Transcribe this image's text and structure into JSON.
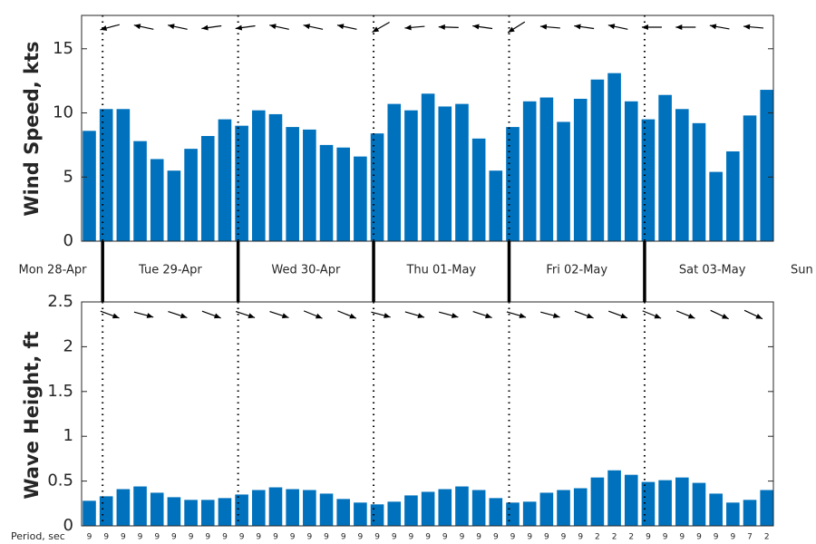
{
  "chart_data": [
    {
      "type": "bar",
      "ylabel": "Wind Speed, kts",
      "color": "#0072bd",
      "ylim": [
        0,
        17.6
      ],
      "yticks": [
        0,
        5,
        10,
        15
      ],
      "x_labels": [
        "Mon 28-Apr",
        "Tue 29-Apr",
        "Wed 30-Apr",
        "Thu 01-May",
        "Fri 02-May",
        "Sat 03-May",
        "Sun"
      ],
      "values": [
        8.6,
        10.3,
        10.3,
        7.8,
        6.4,
        5.5,
        7.2,
        8.2,
        9.5,
        9.0,
        10.2,
        9.9,
        8.9,
        8.7,
        7.5,
        7.3,
        6.6,
        8.4,
        10.7,
        10.2,
        11.5,
        10.5,
        10.7,
        8.0,
        5.5,
        8.9,
        10.9,
        11.2,
        9.3,
        11.1,
        12.6,
        13.1,
        10.9,
        9.5,
        11.4,
        10.3,
        9.2,
        5.4,
        7.0,
        9.8,
        11.8
      ],
      "directions": [
        255,
        282,
        282,
        262,
        262,
        282,
        282,
        282,
        240,
        265,
        272,
        278,
        238,
        275,
        278,
        282,
        270,
        270,
        280,
        275
      ]
    },
    {
      "type": "bar",
      "ylabel": "Wave Height, ft",
      "color": "#0072bd",
      "ylim": [
        0,
        2.5
      ],
      "yticks": [
        0,
        0.5,
        1,
        1.5,
        2,
        2.5
      ],
      "values": [
        0.28,
        0.33,
        0.41,
        0.44,
        0.37,
        0.32,
        0.29,
        0.29,
        0.31,
        0.35,
        0.4,
        0.43,
        0.41,
        0.4,
        0.36,
        0.3,
        0.26,
        0.24,
        0.27,
        0.34,
        0.38,
        0.41,
        0.44,
        0.4,
        0.31,
        0.26,
        0.27,
        0.37,
        0.4,
        0.42,
        0.54,
        0.62,
        0.57,
        0.49,
        0.51,
        0.54,
        0.48,
        0.36,
        0.26,
        0.29,
        0.4
      ],
      "directions": [
        110,
        105,
        108,
        110,
        108,
        108,
        112,
        112,
        105,
        106,
        105,
        108,
        106,
        105,
        110,
        110,
        112,
        112,
        115,
        115
      ],
      "period_label": "Period, sec",
      "periods": [
        9,
        9,
        9,
        9,
        9,
        9,
        9,
        9,
        9,
        9,
        9,
        9,
        9,
        9,
        9,
        9,
        9,
        9,
        9,
        9,
        9,
        9,
        9,
        9,
        9,
        9,
        9,
        9,
        9,
        9,
        2,
        2,
        2,
        9,
        9,
        9,
        9,
        9,
        9,
        7,
        2
      ]
    }
  ]
}
